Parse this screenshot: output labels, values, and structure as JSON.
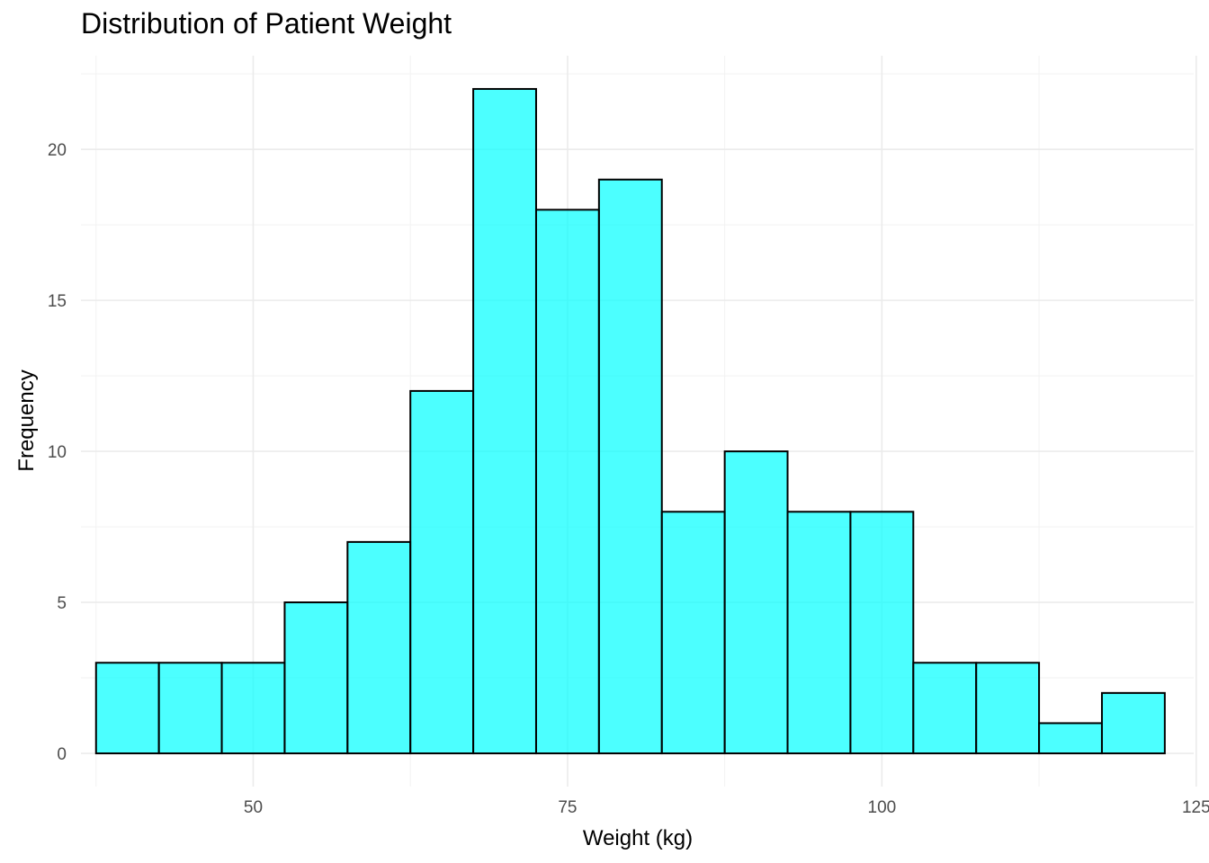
{
  "chart_data": {
    "type": "bar",
    "subtype": "histogram",
    "title": "Distribution of Patient Weight",
    "xlabel": "Weight (kg)",
    "ylabel": "Frequency",
    "xlim": [
      36.3,
      124.8
    ],
    "ylim": [
      -1.1,
      23.1
    ],
    "x_ticks": [
      50,
      75,
      100,
      125
    ],
    "y_ticks": [
      0,
      5,
      10,
      15,
      20
    ],
    "grid": true,
    "bar_fill": "#00FFFF",
    "bar_opacity": 0.7,
    "bar_outline": "#000000",
    "bins": [
      {
        "x0": 37.5,
        "x1": 42.5,
        "count": 3
      },
      {
        "x0": 42.5,
        "x1": 47.5,
        "count": 3
      },
      {
        "x0": 47.5,
        "x1": 52.5,
        "count": 3
      },
      {
        "x0": 52.5,
        "x1": 57.5,
        "count": 5
      },
      {
        "x0": 57.5,
        "x1": 62.5,
        "count": 7
      },
      {
        "x0": 62.5,
        "x1": 67.5,
        "count": 12
      },
      {
        "x0": 67.5,
        "x1": 72.5,
        "count": 22
      },
      {
        "x0": 72.5,
        "x1": 77.5,
        "count": 18
      },
      {
        "x0": 77.5,
        "x1": 82.5,
        "count": 19
      },
      {
        "x0": 82.5,
        "x1": 87.5,
        "count": 8
      },
      {
        "x0": 87.5,
        "x1": 92.5,
        "count": 10
      },
      {
        "x0": 92.5,
        "x1": 97.5,
        "count": 8
      },
      {
        "x0": 97.5,
        "x1": 102.5,
        "count": 8
      },
      {
        "x0": 102.5,
        "x1": 107.5,
        "count": 3
      },
      {
        "x0": 107.5,
        "x1": 112.5,
        "count": 3
      },
      {
        "x0": 112.5,
        "x1": 117.5,
        "count": 1
      },
      {
        "x0": 117.5,
        "x1": 122.5,
        "count": 2
      }
    ]
  }
}
